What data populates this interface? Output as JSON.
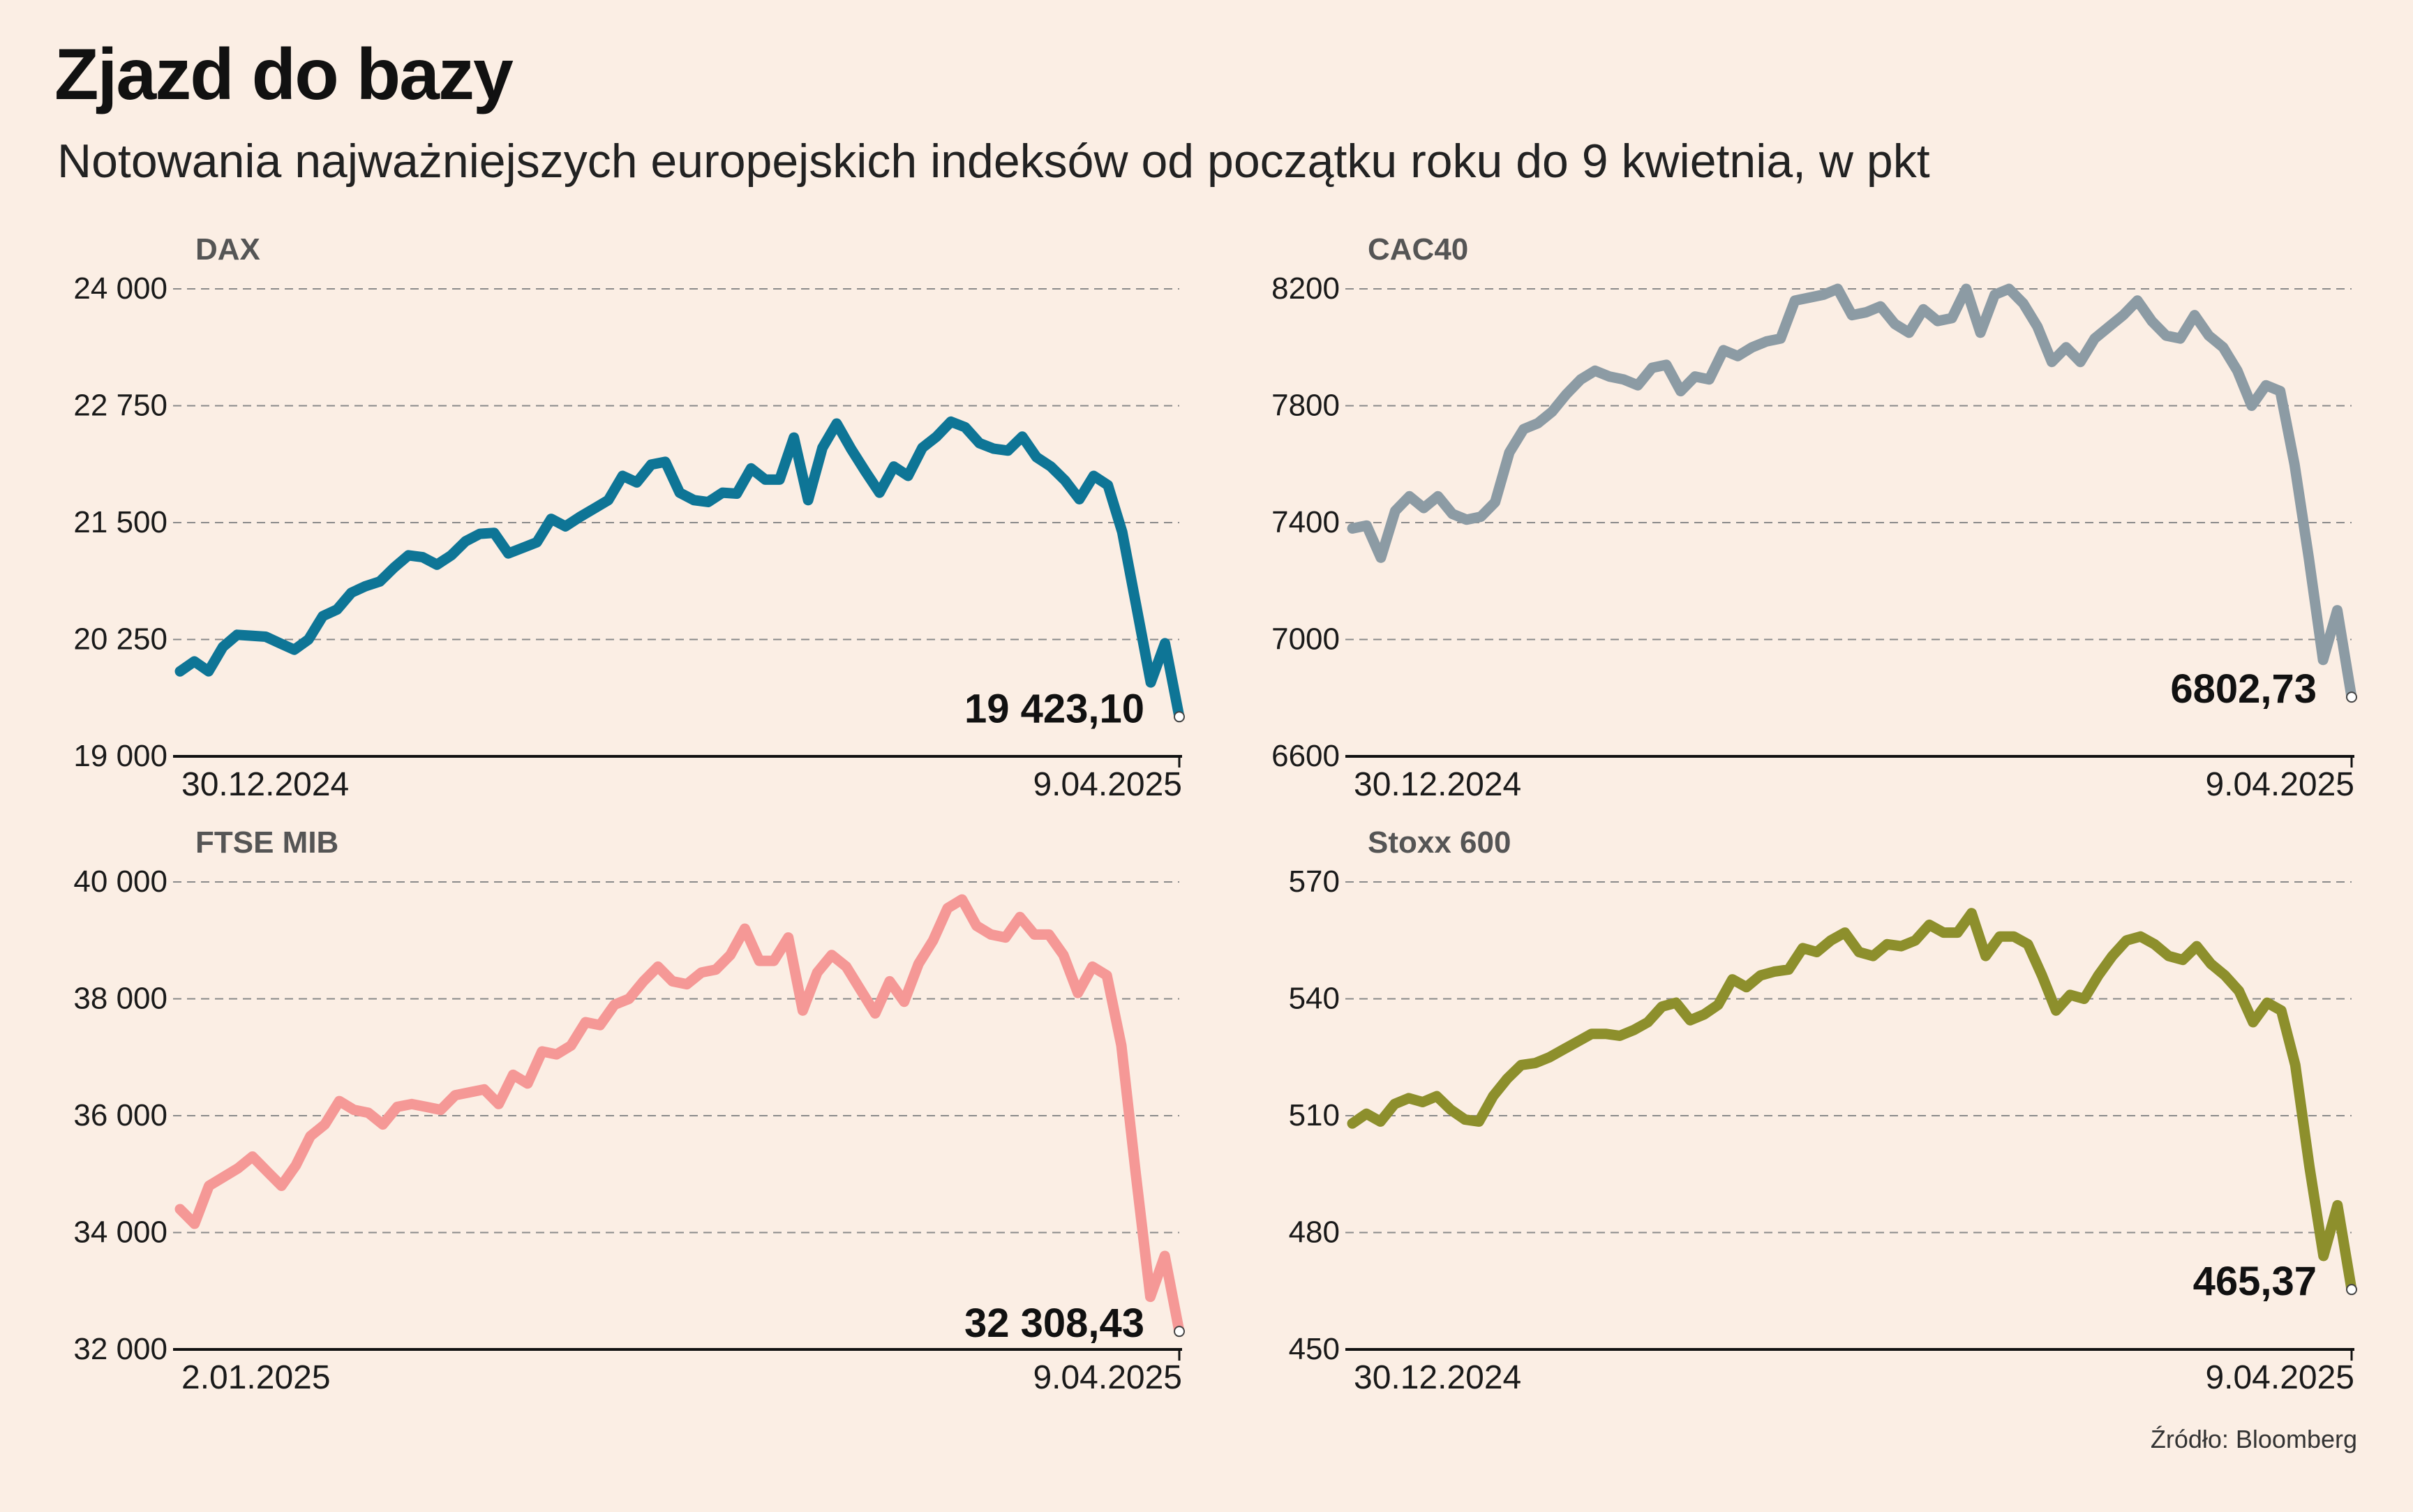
{
  "header": {
    "title": "Zjazd do bazy",
    "subtitle": "Notowania najważniejszych europejskich indeksów od początku roku do 9 kwietnia, w pkt"
  },
  "footer": {
    "source": "Źródło: Bloomberg"
  },
  "chart_data": [
    {
      "type": "line",
      "series_name": "DAX",
      "color": "#0e7596",
      "ylim": [
        19000,
        24000
      ],
      "yticks": [
        19000,
        20250,
        21500,
        22750,
        24000
      ],
      "ytick_labels": [
        "19 000",
        "20 250",
        "21 500",
        "22 750",
        "24 000"
      ],
      "x_start_label": "30.12.2024",
      "x_end_label": "9.04.2025",
      "last_label": "19 423,10",
      "values": [
        19909,
        20016,
        19910,
        20170,
        20300,
        20290,
        20280,
        20210,
        20140,
        20250,
        20500,
        20570,
        20750,
        20820,
        20870,
        21020,
        21150,
        21130,
        21050,
        21150,
        21300,
        21380,
        21390,
        21170,
        21230,
        21290,
        21540,
        21460,
        21560,
        21650,
        21740,
        22000,
        21930,
        22120,
        22150,
        21820,
        21740,
        21720,
        21820,
        21810,
        22080,
        21960,
        21960,
        22410,
        21740,
        22300,
        22560,
        22290,
        22050,
        21820,
        22100,
        22000,
        22300,
        22420,
        22580,
        22520,
        22350,
        22290,
        22270,
        22420,
        22200,
        22100,
        21950,
        21750,
        22000,
        21900,
        21400,
        20600,
        19790,
        20210,
        19423.1
      ]
    },
    {
      "type": "line",
      "series_name": "CAC40",
      "color": "#8c9ba4",
      "ylim": [
        6600,
        8200
      ],
      "yticks": [
        6600,
        7000,
        7400,
        7800,
        8200
      ],
      "ytick_labels": [
        "6600",
        "7000",
        "7400",
        "7800",
        "8200"
      ],
      "x_start_label": "30.12.2024",
      "x_end_label": "9.04.2025",
      "last_label": "6802,73",
      "values": [
        7380,
        7390,
        7280,
        7440,
        7490,
        7450,
        7490,
        7430,
        7410,
        7420,
        7470,
        7640,
        7720,
        7740,
        7780,
        7840,
        7890,
        7920,
        7900,
        7890,
        7870,
        7930,
        7940,
        7850,
        7900,
        7890,
        7990,
        7970,
        8000,
        8020,
        8030,
        8160,
        8170,
        8180,
        8200,
        8110,
        8120,
        8140,
        8080,
        8050,
        8130,
        8090,
        8100,
        8200,
        8050,
        8180,
        8200,
        8150,
        8070,
        7950,
        8000,
        7950,
        8030,
        8070,
        8110,
        8160,
        8090,
        8040,
        8030,
        8110,
        8040,
        8000,
        7920,
        7800,
        7870,
        7850,
        7600,
        7280,
        6930,
        7100,
        6802.73
      ]
    },
    {
      "type": "line",
      "series_name": "FTSE MIB",
      "color": "#f59896",
      "ylim": [
        32000,
        40000
      ],
      "yticks": [
        32000,
        34000,
        36000,
        38000,
        40000
      ],
      "ytick_labels": [
        "32 000",
        "34 000",
        "36 000",
        "38 000",
        "40 000"
      ],
      "x_start_label": "2.01.2025",
      "x_end_label": "9.04.2025",
      "last_label": "32 308,43",
      "values": [
        34400,
        34150,
        34800,
        34950,
        35100,
        35300,
        35050,
        34800,
        35150,
        35650,
        35850,
        36250,
        36100,
        36050,
        35850,
        36150,
        36200,
        36150,
        36100,
        36350,
        36400,
        36450,
        36200,
        36700,
        36550,
        37100,
        37050,
        37200,
        37600,
        37550,
        37900,
        38000,
        38300,
        38550,
        38300,
        38250,
        38450,
        38500,
        38750,
        39200,
        38650,
        38650,
        39050,
        37800,
        38450,
        38750,
        38550,
        38150,
        37750,
        38300,
        37950,
        38600,
        39000,
        39550,
        39700,
        39250,
        39100,
        39050,
        39400,
        39100,
        39100,
        38750,
        38100,
        38550,
        38400,
        37200,
        35000,
        32900,
        33600,
        32308.43
      ]
    },
    {
      "type": "line",
      "series_name": "Stoxx 600",
      "color": "#8d8f2c",
      "ylim": [
        450,
        570
      ],
      "yticks": [
        450,
        480,
        510,
        540,
        570
      ],
      "ytick_labels": [
        "450",
        "480",
        "510",
        "540",
        "570"
      ],
      "x_start_label": "30.12.2024",
      "x_end_label": "9.04.2025",
      "last_label": "465,37",
      "values": [
        508,
        510.5,
        508.5,
        513,
        514.5,
        513.5,
        515,
        511.5,
        509,
        508.5,
        515,
        519.5,
        523,
        523.5,
        525,
        527,
        529,
        531,
        531,
        530.5,
        532,
        534,
        538,
        539,
        534.5,
        536,
        538.5,
        545,
        543,
        546,
        547,
        547.5,
        553,
        552,
        555,
        557,
        552,
        551,
        554,
        553.5,
        555,
        559,
        557,
        557,
        562,
        551,
        556,
        556,
        554,
        546,
        537,
        541,
        540,
        546,
        551,
        555,
        556,
        554,
        551,
        550,
        553.5,
        549,
        546,
        542,
        534,
        539,
        537,
        523,
        497,
        474,
        487,
        465.37
      ]
    }
  ]
}
